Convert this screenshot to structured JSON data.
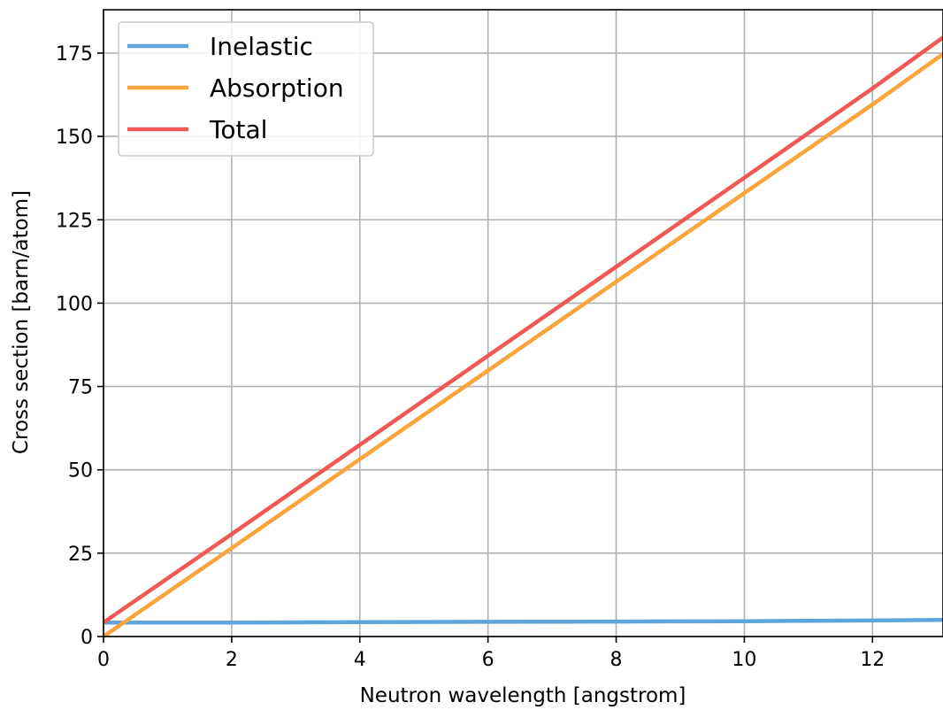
{
  "chart_data": {
    "type": "line",
    "title": "",
    "xlabel": "Neutron wavelength [angstrom]",
    "ylabel": "Cross section [barn/atom]",
    "xlim": [
      0,
      13.1
    ],
    "ylim": [
      0,
      188
    ],
    "xticks": [
      0,
      2,
      4,
      6,
      8,
      10,
      12
    ],
    "yticks": [
      0,
      25,
      50,
      75,
      100,
      125,
      150,
      175
    ],
    "x_tick_labels": [
      "0",
      "2",
      "4",
      "6",
      "8",
      "10",
      "12"
    ],
    "y_tick_labels": [
      "0",
      "25",
      "50",
      "75",
      "100",
      "125",
      "150",
      "175"
    ],
    "grid": true,
    "legend_position": "upper-left",
    "series": [
      {
        "name": "Inelastic",
        "color": "#5da5da",
        "x": [
          0,
          2,
          4,
          6,
          8,
          10,
          12,
          13.1
        ],
        "y": [
          4.2,
          4.2,
          4.3,
          4.4,
          4.5,
          4.6,
          4.8,
          5.0
        ]
      },
      {
        "name": "Absorption",
        "color": "#faa43a",
        "x": [
          0,
          2,
          4,
          6,
          8,
          10,
          12,
          13.1
        ],
        "y": [
          0,
          26.5,
          53.2,
          79.8,
          106.4,
          133.0,
          159.6,
          174.7
        ]
      },
      {
        "name": "Total",
        "color": "#f15854",
        "x": [
          0,
          2,
          4,
          6,
          8,
          10,
          12,
          13.1
        ],
        "y": [
          4.2,
          30.7,
          57.5,
          84.2,
          110.9,
          137.6,
          164.4,
          179.7
        ]
      }
    ]
  }
}
